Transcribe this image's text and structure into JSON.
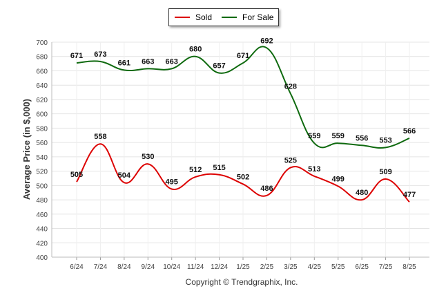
{
  "chart_data": {
    "type": "line",
    "categories": [
      "6/24",
      "7/24",
      "8/24",
      "9/24",
      "10/24",
      "11/24",
      "12/24",
      "1/25",
      "2/25",
      "3/25",
      "4/25",
      "5/25",
      "6/25",
      "7/25",
      "8/25"
    ],
    "series": [
      {
        "name": "Sold",
        "color": "#dd0000",
        "values": [
          505,
          558,
          504,
          530,
          495,
          512,
          515,
          502,
          486,
          525,
          513,
          499,
          480,
          509,
          477
        ]
      },
      {
        "name": "For Sale",
        "color": "#0f6a0f",
        "values": [
          671,
          673,
          661,
          663,
          663,
          680,
          657,
          671,
          692,
          628,
          559,
          559,
          556,
          553,
          566
        ]
      }
    ],
    "ylabel": "Average Price (in $,000)",
    "xlabel": "",
    "ylim": [
      400,
      700
    ],
    "yticks": [
      400,
      420,
      440,
      460,
      480,
      500,
      520,
      540,
      560,
      580,
      600,
      620,
      640,
      660,
      680,
      700
    ],
    "grid": true,
    "legend": "top-center"
  },
  "footer": {
    "copyright": "Copyright © Trendgraphix, Inc."
  }
}
